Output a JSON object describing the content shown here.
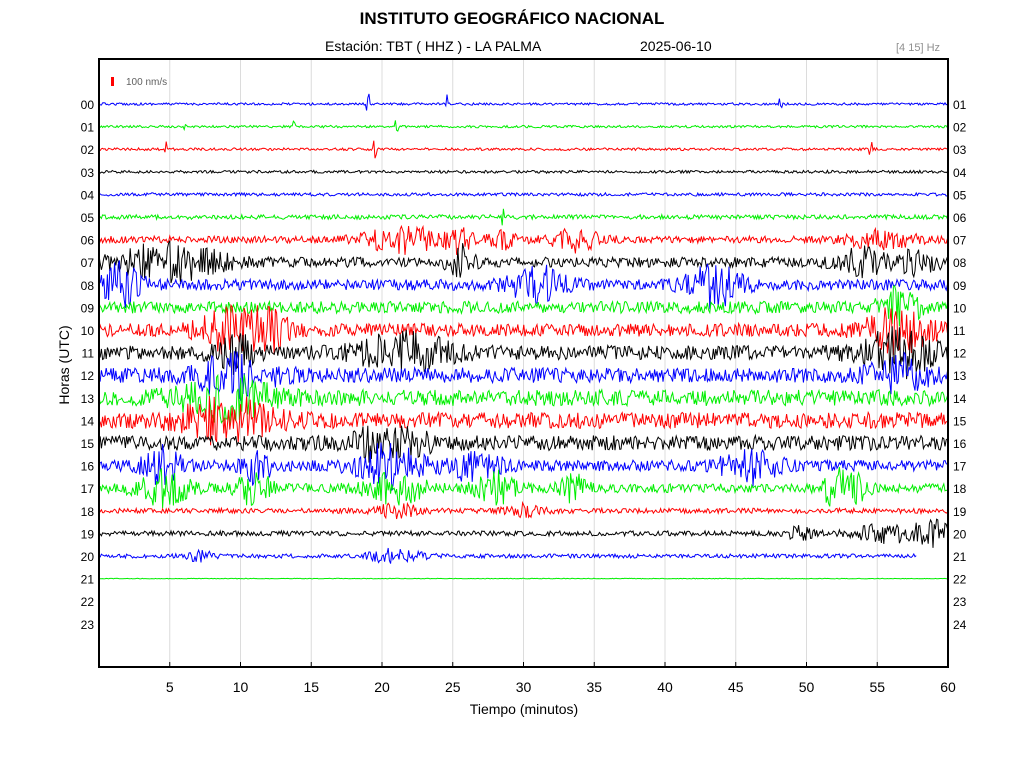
{
  "title": "INSTITUTO GEOGRÁFICO NACIONAL",
  "station": "Estación:  TBT ( HHZ ) - LA PALMA",
  "date": "2025-06-10",
  "filter": "[4 15] Hz",
  "scale_label": "100 nm/s",
  "chart_data": {
    "type": "line",
    "title": "INSTITUTO GEOGRÁFICO NACIONAL",
    "xlabel": "Tiempo (minutos)",
    "ylabel": "Horas (UTC)",
    "xlim": [
      0,
      60
    ],
    "x_ticks": [
      5,
      10,
      15,
      20,
      25,
      30,
      35,
      40,
      45,
      50,
      55,
      60
    ],
    "left_hour_labels": [
      "00",
      "01",
      "02",
      "03",
      "04",
      "05",
      "06",
      "07",
      "08",
      "09",
      "10",
      "11",
      "12",
      "13",
      "14",
      "15",
      "16",
      "17",
      "18",
      "19",
      "20",
      "21",
      "22",
      "23"
    ],
    "right_hour_labels": [
      "01",
      "02",
      "03",
      "04",
      "05",
      "06",
      "07",
      "08",
      "09",
      "10",
      "11",
      "12",
      "13",
      "14",
      "15",
      "16",
      "17",
      "18",
      "19",
      "20",
      "21",
      "22",
      "23",
      "24"
    ],
    "grid": true,
    "trace_colors": [
      "#0000ff",
      "#00ee00",
      "#ff0000",
      "#000000"
    ],
    "series": [
      {
        "hour": "00",
        "color": "#0000ff",
        "noise": 1.2,
        "end_min": 60,
        "spikes": [
          19,
          24.5,
          48.2
        ]
      },
      {
        "hour": "01",
        "color": "#00ee00",
        "noise": 1.2,
        "end_min": 60,
        "spikes": [
          6,
          13.8,
          21
        ]
      },
      {
        "hour": "02",
        "color": "#ff0000",
        "noise": 1.3,
        "end_min": 60,
        "spikes": [
          4.7,
          19.5,
          54.5
        ]
      },
      {
        "hour": "03",
        "color": "#000000",
        "noise": 1.4,
        "end_min": 60,
        "spikes": []
      },
      {
        "hour": "04",
        "color": "#0000ff",
        "noise": 1.6,
        "end_min": 60,
        "spikes": []
      },
      {
        "hour": "05",
        "color": "#00ee00",
        "noise": 2.2,
        "end_min": 60,
        "spikes": [
          28.5
        ]
      },
      {
        "hour": "06",
        "color": "#ff0000",
        "noise": 3.5,
        "end_min": 60,
        "events": [
          [
            21.5,
            3,
            6
          ],
          [
            25.5,
            1,
            5
          ],
          [
            28.5,
            1,
            4
          ],
          [
            33.5,
            2,
            5
          ],
          [
            55.3,
            2.5,
            4
          ]
        ]
      },
      {
        "hour": "07",
        "color": "#000000",
        "noise": 5,
        "end_min": 60,
        "events": [
          [
            5,
            4,
            6
          ],
          [
            25.5,
            1,
            5
          ],
          [
            54,
            2,
            4
          ],
          [
            58,
            1.2,
            5
          ]
        ]
      },
      {
        "hour": "08",
        "color": "#0000ff",
        "noise": 5.5,
        "end_min": 60,
        "events": [
          [
            1.5,
            1.5,
            6
          ],
          [
            31,
            2,
            5
          ],
          [
            43.5,
            2,
            6
          ]
        ]
      },
      {
        "hour": "09",
        "color": "#00ee00",
        "noise": 6,
        "end_min": 60,
        "events": [
          [
            56.5,
            1.5,
            5
          ]
        ]
      },
      {
        "hour": "10",
        "color": "#ff0000",
        "noise": 6.5,
        "end_min": 60,
        "events": [
          [
            9,
            2,
            5
          ],
          [
            12,
            1.5,
            5
          ],
          [
            56.5,
            2.5,
            5
          ]
        ]
      },
      {
        "hour": "11",
        "color": "#000000",
        "noise": 7,
        "end_min": 60,
        "events": [
          [
            9.5,
            1.5,
            4
          ],
          [
            21.5,
            3.5,
            4
          ],
          [
            56.5,
            3,
            5
          ]
        ]
      },
      {
        "hour": "12",
        "color": "#0000ff",
        "noise": 7.5,
        "end_min": 60,
        "events": [
          [
            9.5,
            3,
            4
          ],
          [
            56.5,
            2,
            4
          ]
        ]
      },
      {
        "hour": "13",
        "color": "#00ee00",
        "noise": 8,
        "end_min": 60,
        "events": [
          [
            9,
            3.5,
            4
          ]
        ]
      },
      {
        "hour": "14",
        "color": "#ff0000",
        "noise": 8,
        "end_min": 60,
        "events": [
          [
            9,
            3.5,
            4
          ]
        ]
      },
      {
        "hour": "15",
        "color": "#000000",
        "noise": 7.5,
        "end_min": 60,
        "events": [
          [
            20.5,
            2.5,
            4
          ]
        ]
      },
      {
        "hour": "16",
        "color": "#0000ff",
        "noise": 5.5,
        "end_min": 60,
        "events": [
          [
            4.5,
            1.5,
            5
          ],
          [
            11,
            1.2,
            5
          ],
          [
            20.5,
            2.5,
            6
          ],
          [
            26.5,
            2,
            4
          ],
          [
            46,
            2,
            5
          ]
        ]
      },
      {
        "hour": "17",
        "color": "#00ee00",
        "noise": 4.5,
        "end_min": 60,
        "events": [
          [
            4.5,
            2,
            6
          ],
          [
            11,
            1.3,
            6
          ],
          [
            21,
            2.5,
            5
          ],
          [
            28,
            1.5,
            6
          ],
          [
            33.5,
            1,
            5
          ],
          [
            52,
            1,
            6
          ],
          [
            53.5,
            1,
            5
          ]
        ]
      },
      {
        "hour": "18",
        "color": "#ff0000",
        "noise": 2.5,
        "end_min": 60,
        "events": [
          [
            21,
            2,
            4
          ],
          [
            30,
            1.5,
            4
          ]
        ]
      },
      {
        "hour": "19",
        "color": "#000000",
        "noise": 2.5,
        "end_min": 60,
        "events": [
          [
            49.5,
            1,
            4
          ],
          [
            55.5,
            2.5,
            6
          ],
          [
            59,
            1.5,
            8
          ]
        ]
      },
      {
        "hour": "20",
        "color": "#0000ff",
        "noise": 2,
        "end_min": 57.8,
        "events": [
          [
            7,
            1,
            5
          ],
          [
            21,
            2,
            6
          ]
        ]
      },
      {
        "hour": "21",
        "color": "#00ee00",
        "noise": 0.3,
        "end_min": 60,
        "events": []
      }
    ]
  }
}
